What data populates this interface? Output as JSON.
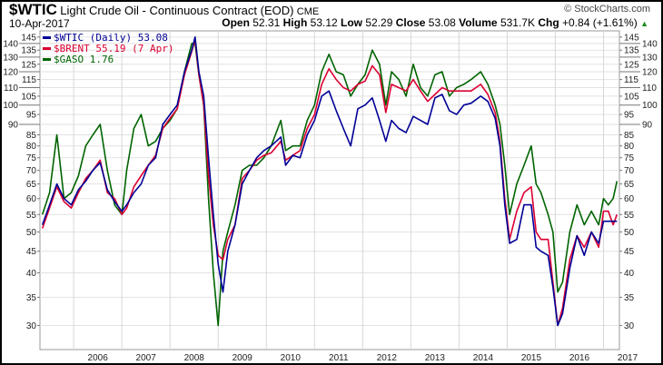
{
  "header": {
    "symbol": "$WTIC",
    "description": "Light Crude Oil - Continuous Contract (EOD)",
    "exchange": "CME",
    "date": "10-Apr-2017",
    "watermark": "© StockCharts.com",
    "open_label": "Open",
    "open": "52.31",
    "high_label": "High",
    "high": "53.12",
    "low_label": "Low",
    "low": "52.29",
    "close_label": "Close",
    "close": "53.08",
    "volume_label": "Volume",
    "volume": "531.7K",
    "chg_label": "Chg",
    "chg": "+0.84 (+1.61%)",
    "chg_direction_icon": "up-triangle-icon"
  },
  "chart_data": {
    "type": "line",
    "title": "$WTIC Light Crude Oil - Continuous Contract (EOD)",
    "yscale": "log",
    "ylim": [
      26.3,
      150
    ],
    "yticks": [
      30,
      35,
      40,
      45,
      50,
      55,
      60,
      65,
      70,
      75,
      80,
      85,
      90,
      95,
      100,
      105,
      110,
      115,
      120,
      125,
      130,
      135,
      140,
      145
    ],
    "xlim": [
      2005.3,
      2017.33
    ],
    "xticks": [
      2006,
      2007,
      2008,
      2009,
      2010,
      2011,
      2012,
      2013,
      2014,
      2015,
      2016,
      2017
    ],
    "xtick_labels": [
      "2006",
      "2007",
      "2008",
      "2009",
      "2010",
      "2011",
      "2012",
      "2013",
      "2014",
      "2015",
      "2016",
      "2017"
    ],
    "grid": true,
    "legend_position": "top-left",
    "x": [
      2005.35,
      2005.5,
      2005.65,
      2005.8,
      2005.95,
      2006.1,
      2006.25,
      2006.4,
      2006.55,
      2006.7,
      2006.85,
      2007.0,
      2007.1,
      2007.25,
      2007.4,
      2007.55,
      2007.7,
      2007.85,
      2008.0,
      2008.15,
      2008.3,
      2008.45,
      2008.52,
      2008.6,
      2008.7,
      2008.8,
      2008.9,
      2009.0,
      2009.1,
      2009.2,
      2009.35,
      2009.5,
      2009.65,
      2009.8,
      2009.95,
      2010.1,
      2010.3,
      2010.4,
      2010.55,
      2010.7,
      2010.85,
      2011.0,
      2011.15,
      2011.3,
      2011.45,
      2011.6,
      2011.75,
      2011.9,
      2012.05,
      2012.2,
      2012.35,
      2012.48,
      2012.6,
      2012.75,
      2012.9,
      2013.05,
      2013.2,
      2013.35,
      2013.5,
      2013.65,
      2013.8,
      2013.95,
      2014.1,
      2014.25,
      2014.45,
      2014.6,
      2014.75,
      2014.85,
      2014.95,
      2015.05,
      2015.2,
      2015.35,
      2015.5,
      2015.6,
      2015.7,
      2015.85,
      2015.95,
      2016.05,
      2016.15,
      2016.3,
      2016.45,
      2016.6,
      2016.75,
      2016.9,
      2017.0,
      2017.1,
      2017.2,
      2017.28
    ],
    "series": [
      {
        "name": "$GASO",
        "legend": "$GASO 1.76",
        "color": "#006400",
        "values": [
          55,
          62,
          85,
          60,
          62,
          68,
          80,
          85,
          90,
          70,
          58,
          55,
          70,
          88,
          95,
          80,
          82,
          88,
          92,
          98,
          120,
          140,
          140,
          118,
          100,
          60,
          40,
          30,
          45,
          50,
          58,
          70,
          72,
          72,
          75,
          80,
          92,
          78,
          80,
          80,
          92,
          100,
          120,
          132,
          120,
          118,
          105,
          112,
          118,
          135,
          125,
          100,
          120,
          115,
          105,
          125,
          110,
          105,
          118,
          120,
          105,
          110,
          112,
          115,
          120,
          112,
          100,
          90,
          72,
          55,
          65,
          72,
          80,
          65,
          62,
          55,
          50,
          36,
          38,
          50,
          58,
          52,
          56,
          52,
          60,
          58,
          60,
          66
        ]
      },
      {
        "name": "$BRENT",
        "legend": "$BRENT 55.19 (7 Apr)",
        "color": "#dc0032",
        "values": [
          51,
          57,
          64,
          59,
          57,
          62,
          67,
          70,
          74,
          62,
          60,
          55,
          57,
          64,
          68,
          72,
          76,
          88,
          93,
          98,
          118,
          134,
          143,
          118,
          100,
          68,
          52,
          44,
          43,
          48,
          52,
          67,
          70,
          74,
          76,
          77,
          82,
          74,
          76,
          78,
          88,
          95,
          112,
          122,
          115,
          110,
          108,
          112,
          114,
          124,
          118,
          96,
          112,
          110,
          108,
          115,
          108,
          102,
          106,
          110,
          108,
          108,
          108,
          108,
          112,
          106,
          96,
          82,
          60,
          48,
          56,
          62,
          64,
          50,
          48,
          48,
          38,
          30,
          33,
          43,
          49,
          46,
          50,
          46,
          56,
          56,
          52,
          55
        ]
      },
      {
        "name": "$WTIC",
        "legend": "$WTIC (Daily) 53.08",
        "color": "#000096",
        "values": [
          52,
          58,
          65,
          60,
          58,
          63,
          66,
          70,
          73,
          63,
          59,
          56,
          58,
          62,
          65,
          72,
          75,
          90,
          95,
          100,
          120,
          135,
          145,
          120,
          105,
          75,
          55,
          42,
          36,
          45,
          52,
          65,
          70,
          75,
          78,
          80,
          84,
          72,
          76,
          75,
          85,
          92,
          105,
          108,
          97,
          88,
          80,
          98,
          100,
          104,
          92,
          82,
          92,
          88,
          86,
          94,
          92,
          90,
          104,
          106,
          97,
          95,
          100,
          101,
          105,
          102,
          93,
          80,
          58,
          47,
          48,
          58,
          58,
          46,
          45,
          44,
          37,
          30,
          32,
          41,
          49,
          44,
          50,
          47,
          53,
          53,
          53,
          53
        ]
      }
    ]
  }
}
